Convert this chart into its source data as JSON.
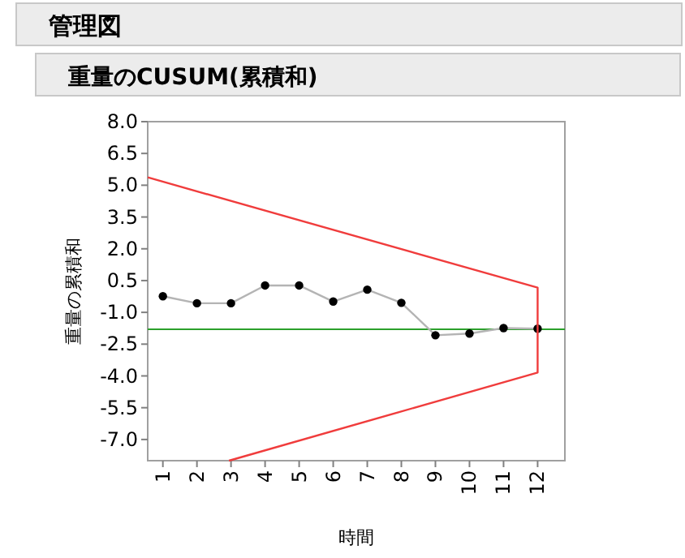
{
  "chart_data": {
    "type": "line",
    "title": "管理図",
    "subtitle": "重量のCUSUM(累積和)",
    "xlabel": "時間",
    "ylabel": "重量の累積和",
    "xlim": [
      0.555,
      12.8
    ],
    "ylim": [
      -8,
      8
    ],
    "xticks": [
      1,
      2,
      3,
      4,
      5,
      6,
      7,
      8,
      9,
      10,
      11,
      12
    ],
    "yticks": [
      {
        "value": 8,
        "label": "8.0"
      },
      {
        "value": 6.5,
        "label": "6.5"
      },
      {
        "value": 5,
        "label": "5.0"
      },
      {
        "value": 3.5,
        "label": "3.5"
      },
      {
        "value": 2,
        "label": "2.0"
      },
      {
        "value": 0.5,
        "label": "0.5"
      },
      {
        "value": -1,
        "label": "-1.0"
      },
      {
        "value": -2.5,
        "label": "-2.5"
      },
      {
        "value": -4,
        "label": "-4.0"
      },
      {
        "value": -5.5,
        "label": "-5.5"
      },
      {
        "value": -7,
        "label": "-7.0"
      }
    ],
    "marker": "circle",
    "grid": false,
    "series": [
      {
        "color": "#000000",
        "x": [
          1,
          2,
          3,
          4,
          5,
          6,
          7,
          8,
          9,
          10,
          11,
          12
        ],
        "values": [
          -0.24,
          -0.57,
          -0.57,
          0.27,
          0.27,
          -0.49,
          0.07,
          -0.55,
          -2.08,
          -2.0,
          -1.74,
          -1.77
        ]
      },
      {
        "color": "#f03c3c",
        "marker": "none",
        "x": [
          0.555,
          12,
          12,
          2.94
        ],
        "values": [
          5.37,
          0.17,
          -3.84,
          -8
        ]
      }
    ],
    "ref_lines": [
      {
        "axis": "y",
        "value": -1.8,
        "color": "#2ca02c"
      }
    ]
  }
}
